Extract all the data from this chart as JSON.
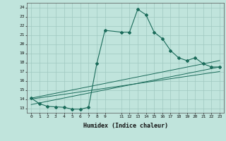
{
  "xlabel": "Humidex (Indice chaleur)",
  "bg_color": "#c0e4dc",
  "grid_color": "#a0c8c0",
  "line_color": "#1a6b5a",
  "xlim": [
    -0.5,
    23.5
  ],
  "ylim": [
    12.5,
    24.5
  ],
  "series_main": {
    "x": [
      0,
      1,
      2,
      3,
      4,
      5,
      6,
      7,
      8,
      9,
      11,
      12,
      13,
      14,
      15,
      16,
      17,
      18,
      19,
      20,
      21,
      22,
      23
    ],
    "y": [
      14.1,
      13.5,
      13.2,
      13.15,
      13.1,
      12.9,
      12.9,
      13.1,
      17.85,
      21.5,
      21.3,
      21.3,
      23.8,
      23.2,
      21.3,
      20.6,
      19.3,
      18.5,
      18.2,
      18.5,
      17.85,
      17.5,
      17.5
    ]
  },
  "trend1": {
    "x": [
      0,
      23
    ],
    "y": [
      14.1,
      18.2
    ]
  },
  "trend2": {
    "x": [
      0,
      23
    ],
    "y": [
      13.4,
      17.5
    ]
  },
  "trend3": {
    "x": [
      0,
      23
    ],
    "y": [
      14.0,
      17.0
    ]
  },
  "xtick_vals": [
    0,
    1,
    2,
    3,
    4,
    5,
    6,
    7,
    8,
    9,
    11,
    12,
    13,
    14,
    15,
    16,
    17,
    18,
    19,
    20,
    21,
    22,
    23
  ],
  "ytick_vals": [
    13,
    14,
    15,
    16,
    17,
    18,
    19,
    20,
    21,
    22,
    23,
    24
  ]
}
